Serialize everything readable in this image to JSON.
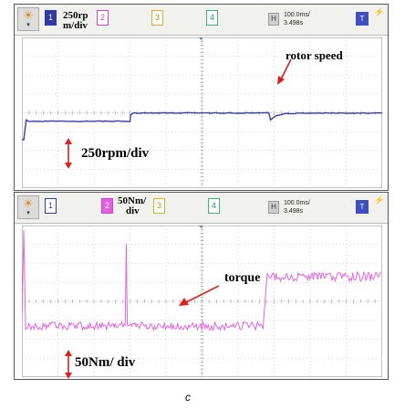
{
  "scope_top": {
    "run_icon": "sun-icon",
    "run_arrow": "▾",
    "channels": [
      "1",
      "2",
      "3",
      "4"
    ],
    "active_channel": "1",
    "scale_line1": "250rp",
    "scale_line2": "m/div",
    "h_label": "H",
    "timebase": "100.0ms/",
    "time_offset": "3.498s",
    "t_label": "T",
    "bolt": "⚡",
    "annotation": "rotor speed",
    "scale_annotation": "250rpm/div",
    "trace_color": "#3a3db8",
    "arrow_color": "#e02020",
    "trace_levels_div": [
      {
        "t": 0.0,
        "div": 0.0
      },
      {
        "t": 1.0,
        "div": 1.0
      },
      {
        "t": 3.0,
        "div": 1.4
      },
      {
        "t": 6.8,
        "div": 1.4
      },
      {
        "t": 7.0,
        "div": 1.05
      },
      {
        "t": 10.0,
        "div": 1.4
      }
    ]
  },
  "scope_bottom": {
    "run_icon": "sun-icon",
    "run_arrow": "▾",
    "channels": [
      "1",
      "2",
      "3",
      "4"
    ],
    "active_channel": "2",
    "scale_line1": "50Nm/",
    "scale_line2": "div",
    "h_label": "H",
    "timebase": "100.0ms/",
    "time_offset": "3.498s",
    "t_label": "T",
    "bolt": "⚡",
    "annotation": "torque",
    "scale_annotation": "50Nm/ div",
    "trace_color": "#e267e2"
  },
  "caption": "c"
}
